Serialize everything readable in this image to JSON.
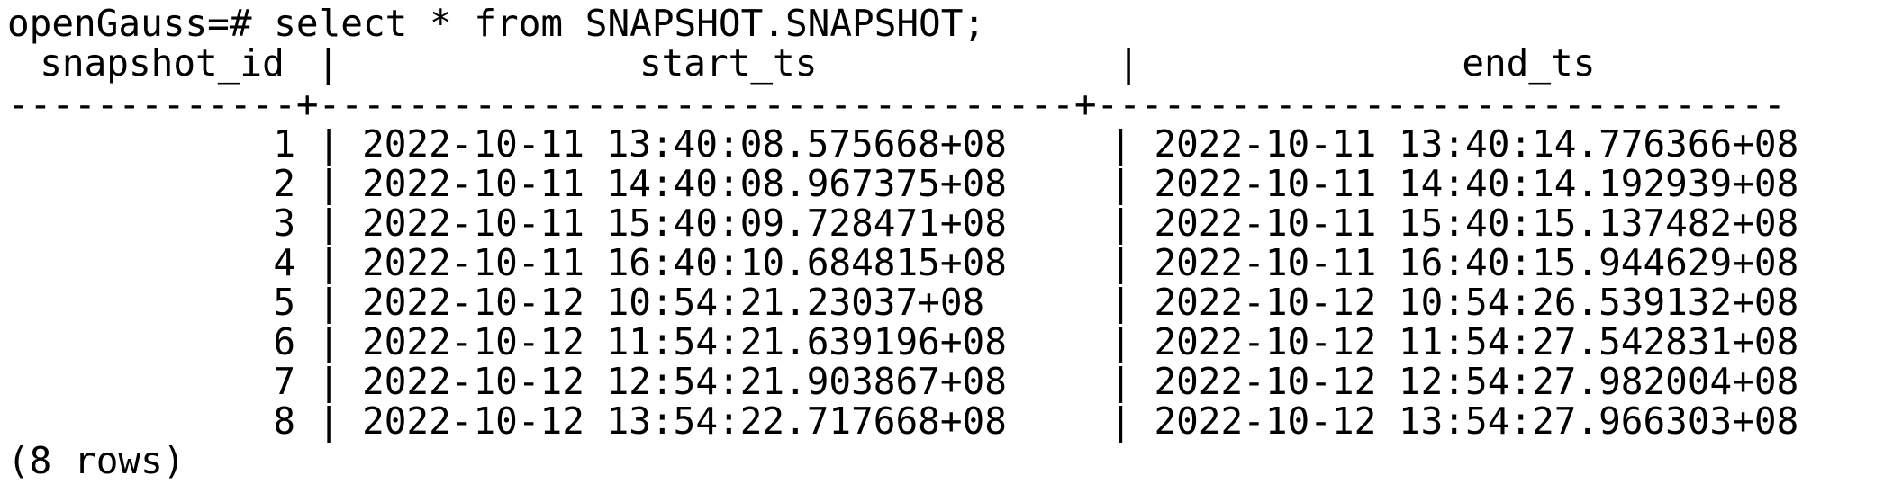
{
  "terminal": {
    "prompt": "openGauss=# ",
    "command": "select * from SNAPSHOT.SNAPSHOT;",
    "columns": [
      "snapshot_id",
      "start_ts",
      "end_ts"
    ],
    "rule": "-------------+----------------------------------+-------------------------------",
    "separator": "|",
    "rows": [
      {
        "snapshot_id": "1",
        "start_ts": "2022-10-11 13:40:08.575668+08",
        "end_ts": "2022-10-11 13:40:14.776366+08"
      },
      {
        "snapshot_id": "2",
        "start_ts": "2022-10-11 14:40:08.967375+08",
        "end_ts": "2022-10-11 14:40:14.192939+08"
      },
      {
        "snapshot_id": "3",
        "start_ts": "2022-10-11 15:40:09.728471+08",
        "end_ts": "2022-10-11 15:40:15.137482+08"
      },
      {
        "snapshot_id": "4",
        "start_ts": "2022-10-11 16:40:10.684815+08",
        "end_ts": "2022-10-11 16:40:15.944629+08"
      },
      {
        "snapshot_id": "5",
        "start_ts": "2022-10-12 10:54:21.23037+08",
        "end_ts": "2022-10-12 10:54:26.539132+08"
      },
      {
        "snapshot_id": "6",
        "start_ts": "2022-10-12 11:54:21.639196+08",
        "end_ts": "2022-10-12 11:54:27.542831+08"
      },
      {
        "snapshot_id": "7",
        "start_ts": "2022-10-12 12:54:21.903867+08",
        "end_ts": "2022-10-12 12:54:27.982004+08"
      },
      {
        "snapshot_id": "8",
        "start_ts": "2022-10-12 13:54:22.717668+08",
        "end_ts": "2022-10-12 13:54:27.966303+08"
      }
    ],
    "footer": "(8 rows)"
  }
}
